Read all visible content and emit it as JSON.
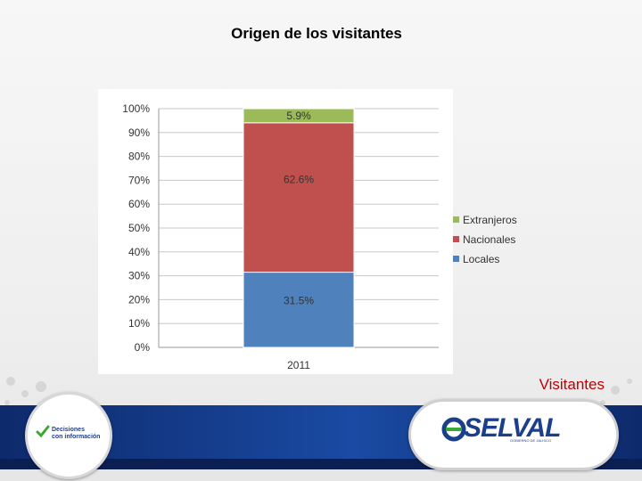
{
  "page": {
    "title": "Origen de los visitantes",
    "caption": "Visitantes"
  },
  "footer": {
    "left_logo": {
      "line1": "Decisiones",
      "line2": "con información"
    },
    "right_logo": {
      "name": "SELVAL",
      "tagline": "GOBIERNO DE JALISCO"
    }
  },
  "colors": {
    "extranjeros": "#9bbb59",
    "nacionales": "#c0504d",
    "locales": "#4f81bd",
    "caption": "#c00000",
    "footer": "#1a4aa3"
  },
  "chart_data": {
    "type": "bar",
    "stacked": true,
    "categories": [
      "2011"
    ],
    "series": [
      {
        "name": "Locales",
        "values": [
          31.5
        ],
        "label": "31.5%",
        "color": "#4f81bd"
      },
      {
        "name": "Nacionales",
        "values": [
          62.6
        ],
        "label": "62.6%",
        "color": "#c0504d"
      },
      {
        "name": "Extranjeros",
        "values": [
          5.9
        ],
        "label": "5.9%",
        "color": "#9bbb59"
      }
    ],
    "y_ticks": [
      "0%",
      "10%",
      "20%",
      "30%",
      "40%",
      "50%",
      "60%",
      "70%",
      "80%",
      "90%",
      "100%"
    ],
    "ylim": [
      0,
      100
    ],
    "grid": true,
    "legend": {
      "position": "right",
      "order": [
        "Extranjeros",
        "Nacionales",
        "Locales"
      ]
    }
  }
}
